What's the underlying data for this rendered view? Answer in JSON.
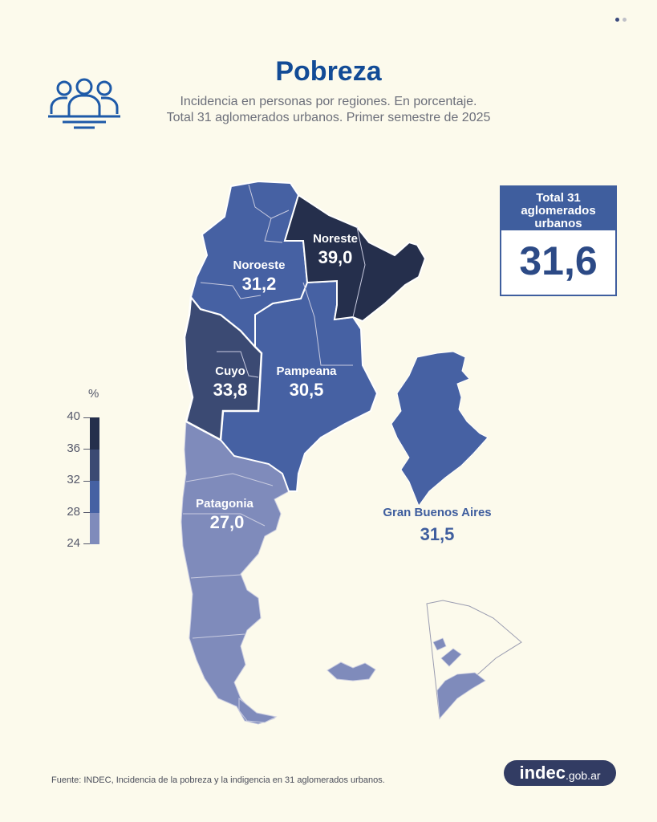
{
  "header": {
    "title": "Pobreza",
    "subtitle_line1": "Incidencia en personas por regiones. En porcentaje.",
    "subtitle_line2": "Total 31 aglomerados urbanos. Primer semestre de 2025"
  },
  "total": {
    "label": "Total 31 aglomerados urbanos",
    "value": "31,6"
  },
  "regions": [
    {
      "id": "noroeste",
      "name": "Noroeste",
      "value": "31,2",
      "color": "#4661a3"
    },
    {
      "id": "noreste",
      "name": "Noreste",
      "value": "39,0",
      "color": "#252f4c"
    },
    {
      "id": "cuyo",
      "name": "Cuyo",
      "value": "33,8",
      "color": "#3b4a73"
    },
    {
      "id": "pampeana",
      "name": "Pampeana",
      "value": "30,5",
      "color": "#4661a3"
    },
    {
      "id": "patagonia",
      "name": "Patagonia",
      "value": "27,0",
      "color": "#7f8bbb"
    },
    {
      "id": "gba",
      "name": "Gran Buenos Aires",
      "value": "31,5",
      "color": "#4661a3"
    }
  ],
  "legend": {
    "unit": "%",
    "ticks": [
      "40",
      "36",
      "32",
      "28",
      "24"
    ],
    "colors": [
      "#252f4c",
      "#3b4a73",
      "#4661a3",
      "#7f8bbb"
    ]
  },
  "footer": {
    "source": "Fuente: INDEC, Incidencia de la pobreza y la indigencia en 31 aglomerados urbanos.",
    "brand_main": "indec",
    "brand_sub": ".gob.ar"
  }
}
